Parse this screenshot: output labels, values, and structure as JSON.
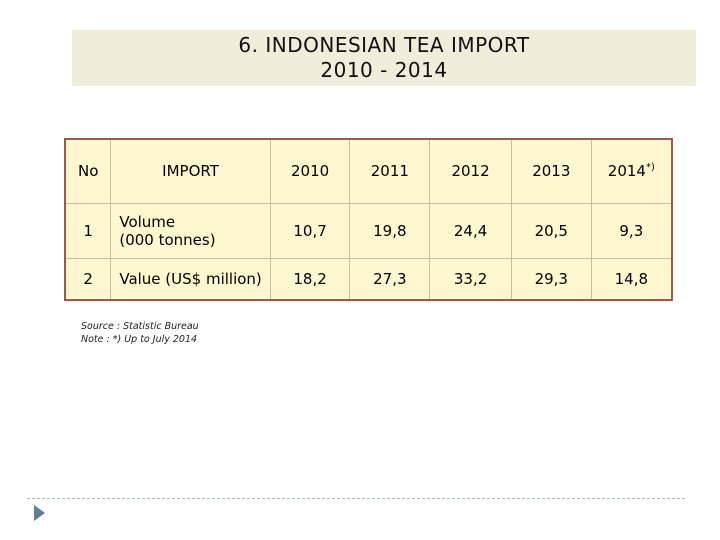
{
  "title": {
    "line1": "6. INDONESIAN TEA IMPORT",
    "line2": "2010 - 2014"
  },
  "table": {
    "headers": {
      "no": "No",
      "import": "IMPORT",
      "y2010": "2010",
      "y2011": "2011",
      "y2012": "2012",
      "y2013": "2013",
      "y2014": "2014",
      "y2014_marker": "*)"
    },
    "rows": [
      {
        "no": "1",
        "label_line1": "Volume",
        "label_line2": "(000 tonnes)",
        "values": [
          "10,7",
          "19,8",
          "24,4",
          "20,5",
          "9,3"
        ]
      },
      {
        "no": "2",
        "label": "Value (US$ million)",
        "values": [
          "18,2",
          "27,3",
          "33,2",
          "29,3",
          "14,8"
        ]
      }
    ]
  },
  "notes": {
    "source": "Source : Statistic Bureau",
    "note": "Note : *) Up to July 2014"
  },
  "colors": {
    "title_band": "#eeeedb",
    "table_fill": "#fff7cf",
    "table_border": "#9b5a4a",
    "footer_arrow": "#5f7f93"
  },
  "icons": {
    "footer": "triangle-arrow-icon"
  }
}
